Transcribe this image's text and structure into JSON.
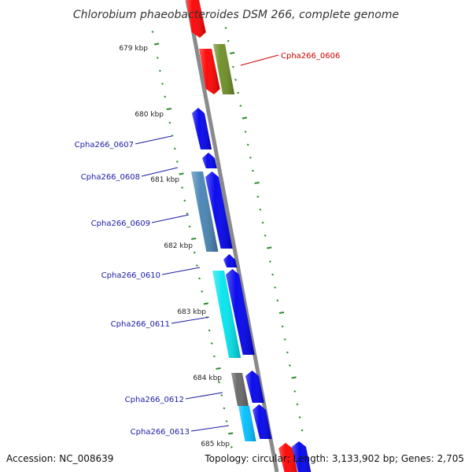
{
  "title": "Chlorobium phaeobacteroides DSM 266, complete genome",
  "footer": {
    "accession": "Accession: NC_008639",
    "summary": "Topology: circular; Length: 3,133,902 bp; Genes: 2,705"
  },
  "colors": {
    "backbone": "#8a8a8a",
    "tick": "#2e8b2e",
    "label_red": "#cc0000",
    "label_blue": "#1a1aa8"
  },
  "scale_ticks": [
    {
      "label": "679 kbp",
      "kbp": 679
    },
    {
      "label": "680 kbp",
      "kbp": 680
    },
    {
      "label": "681 kbp",
      "kbp": 681
    },
    {
      "label": "682 kbp",
      "kbp": 682
    },
    {
      "label": "683 kbp",
      "kbp": 683
    },
    {
      "label": "684 kbp",
      "kbp": 684
    },
    {
      "label": "685 kbp",
      "kbp": 685
    }
  ],
  "gene_labels": [
    {
      "id": "Cpha266_0606",
      "text": "Cpha266_0606",
      "color": "#cc0000"
    },
    {
      "id": "Cpha266_0607",
      "text": "Cpha266_0607",
      "color": "#1a1aa8"
    },
    {
      "id": "Cpha266_0608",
      "text": "Cpha266_0608",
      "color": "#1a1aa8"
    },
    {
      "id": "Cpha266_0609",
      "text": "Cpha266_0609",
      "color": "#1a1aa8"
    },
    {
      "id": "Cpha266_0610",
      "text": "Cpha266_0610",
      "color": "#1a1aa8"
    },
    {
      "id": "Cpha266_0611",
      "text": "Cpha266_0611",
      "color": "#1a1aa8"
    },
    {
      "id": "Cpha266_0612",
      "text": "Cpha266_0612",
      "color": "#1a1aa8"
    },
    {
      "id": "Cpha266_0613",
      "text": "Cpha266_0613",
      "color": "#1a1aa8"
    }
  ],
  "features": [
    {
      "name": "gene-red-1",
      "color": "#ff0000"
    },
    {
      "name": "gene-red-2",
      "color": "#ff0000"
    },
    {
      "name": "cds-0606",
      "color": "#6b8e23"
    },
    {
      "name": "gene-blue-0607",
      "color": "#0000ee"
    },
    {
      "name": "gene-blue-0608",
      "color": "#0000ee"
    },
    {
      "name": "cds-0608",
      "color": "#4682b4"
    },
    {
      "name": "gene-blue-0609",
      "color": "#0000ee"
    },
    {
      "name": "gene-blue-0610",
      "color": "#0000ee"
    },
    {
      "name": "cds-0611",
      "color": "#00e5ee"
    },
    {
      "name": "gene-blue-0611",
      "color": "#0000ee"
    },
    {
      "name": "cds-0612",
      "color": "#666666"
    },
    {
      "name": "gene-blue-0612",
      "color": "#0000ee"
    },
    {
      "name": "cds-0613",
      "color": "#00bfff"
    },
    {
      "name": "gene-blue-0613",
      "color": "#0000ee"
    },
    {
      "name": "gene-red-bottom",
      "color": "#ff0000"
    },
    {
      "name": "gene-blue-bottom",
      "color": "#0000ee"
    }
  ]
}
